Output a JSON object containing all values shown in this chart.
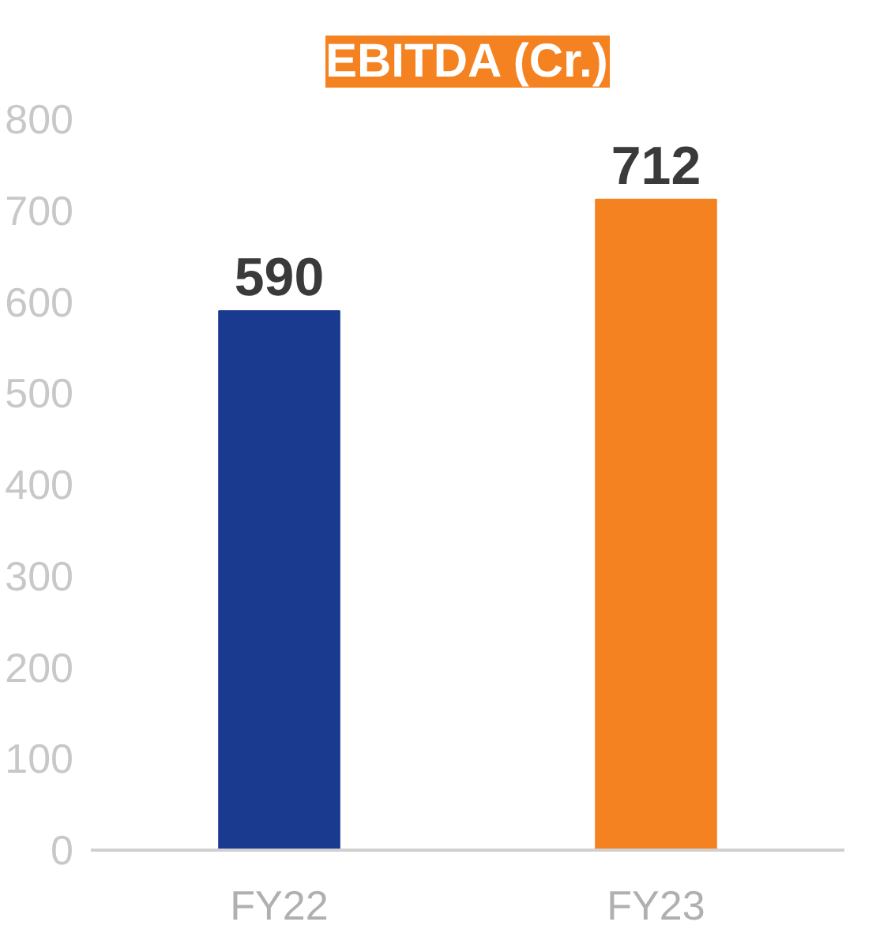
{
  "chart_data": {
    "type": "bar",
    "title": "EBITDA (Cr.)",
    "categories": [
      "FY22",
      "FY23"
    ],
    "values": [
      590,
      712
    ],
    "colors": [
      "#1a3a8f",
      "#f58220"
    ],
    "ylim": [
      0,
      800
    ],
    "yticks": [
      0,
      100,
      200,
      300,
      400,
      500,
      600,
      700,
      800
    ],
    "data_labels": true,
    "grid": false
  }
}
